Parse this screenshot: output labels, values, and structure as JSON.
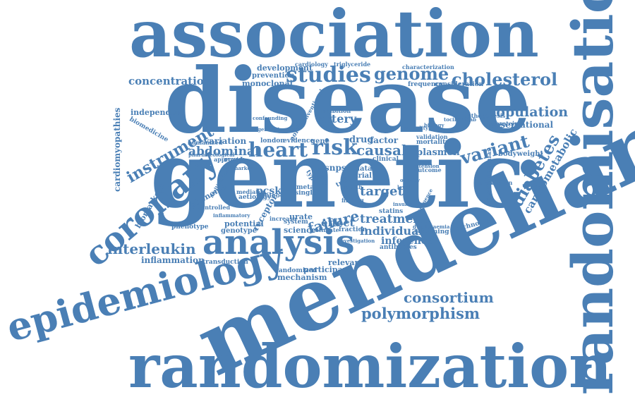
{
  "theme": {
    "word_color": "#4a7fb5",
    "background": "#ffffff"
  },
  "words": {
    "association": "association",
    "disease": "disease",
    "genetic": "genetic",
    "mendelian": "mendelian",
    "randomization": "randomization",
    "randomisation": "randomisation",
    "epidemiology": "epidemiology",
    "coronary": "coronary",
    "analysis": "analysis",
    "studies": "studies",
    "genome": "genome",
    "cholesterol": "cholesterol",
    "concentration": "concentration",
    "population": "population",
    "observational": "observational",
    "variant": "variant",
    "diabetes": "diabetes",
    "cardiometabolic": "cardiometabolic",
    "heart": "heart",
    "risk": "risk",
    "causal": "causal",
    "instrument": "instrument",
    "abdominal": "abdominal",
    "variation": "variation",
    "interleukin": "interleukin",
    "inflammation": "inflammation",
    "consortium": "consortium",
    "polymorphism": "polymorphism",
    "treatment": "treatment",
    "individual": "individual",
    "inference": "inference",
    "failure": "failure",
    "effect": "effect",
    "target": "target",
    "plasmon": "plasmon",
    "bodyweight": "bodyweight",
    "drug": "drug",
    "factor": "factor",
    "artery": "artery",
    "development": "development",
    "prevention": "prevention",
    "monoclonal": "monoclonal",
    "independent": "independent",
    "biomedicine": "biomedicine",
    "cardiomyopathies": "cardiomyopathies",
    "biomarkers": "biomarkers",
    "phenome": "phenome",
    "controlled": "controlled",
    "potential": "potential",
    "genotype": "genotype",
    "phenotype": "phenotype",
    "science": "science",
    "system": "system",
    "urate": "urate",
    "relevance": "relevance",
    "participant": "participant",
    "randomized": "randomized",
    "mechanism": "mechanism",
    "transduction": "transduction",
    "pcsk": "pcsk",
    "aetiology": "aetiology",
    "blood": "blood",
    "mediator": "mediator",
    "receptor": "receptor",
    "snps": "snps",
    "gene": "gene",
    "evidence": "evidence",
    "london": "london",
    "humanized": "humanized",
    "approved": "approved",
    "data": "data",
    "trial": "trial",
    "clinical": "clinical",
    "statins": "statins",
    "dyslipidaemias": "dyslipidaemias",
    "prediction": "prediction",
    "technology": "technology",
    "antibodies": "antibodies",
    "frequency": "frequency",
    "consideration": "consideration",
    "characterization": "characterization",
    "cardiology": "cardiology",
    "triglyceride": "triglyceride",
    "lipoprotein": "lipoprotein",
    "pathogenesis": "pathogenesis",
    "outcome": "outcome",
    "mortality": "mortality",
    "validation": "validation",
    "screening": "screening",
    "fraction": "fraction",
    "estimate": "estimate",
    "increase": "increase",
    "single": "single",
    "finding": "finding",
    "meta": "meta",
    "aortic": "aortic",
    "conventional": "conventional",
    "inhibition": "inhibition",
    "trait": "trait",
    "type": "type",
    "study": "study",
    "health": "health",
    "inflammatory": "inflammatory",
    "pharmacological": "pharmacological",
    "confounding": "confounding",
    "provide": "provide",
    "lipid": "lipid",
    "extension": "extension",
    "biology": "biology",
    "multivariable": "multivariable",
    "determine": "determine",
    "genes": "genes",
    "causality": "causality",
    "investigation": "investigation",
    "dysglycaemia": "dysglycaemia",
    "sequence": "sequence",
    "tocilizumab": "tocilizumab",
    "obesity": "obesity",
    "level": "level",
    "insulin": "insulin",
    "marker": "marker"
  }
}
